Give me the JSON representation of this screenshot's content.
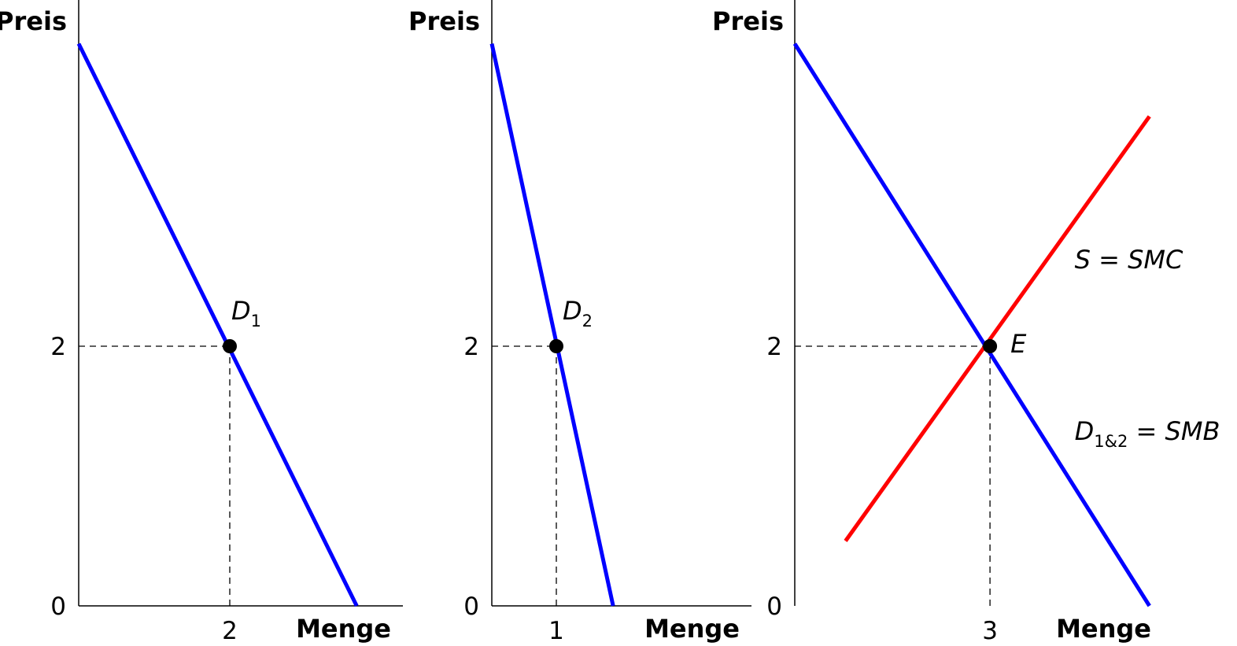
{
  "colors": {
    "demand": "#0000ff",
    "supply": "#ff0000",
    "axis": "#000000"
  },
  "chart_data": [
    {
      "type": "line",
      "ylabel": "Preis",
      "xlabel": "Menge",
      "xticks": [
        {
          "value": 2,
          "label": "2"
        }
      ],
      "yticks": [
        {
          "value": 0,
          "label": "0"
        },
        {
          "value": 2,
          "label": "2"
        }
      ],
      "xlim": [
        0,
        4.3
      ],
      "ylim": [
        0,
        4.4
      ],
      "series": [
        {
          "name": "D1",
          "color": "demand",
          "points": [
            [
              0,
              4.33
            ],
            [
              3.68,
              0
            ]
          ]
        }
      ],
      "points": [
        {
          "x": 2,
          "y": 2,
          "label": "D",
          "subscript": "1",
          "label_dx": 2,
          "label_dy": -34
        }
      ]
    },
    {
      "type": "line",
      "ylabel": "Preis",
      "xlabel": "Menge",
      "xticks": [
        {
          "value": 1,
          "label": "1"
        }
      ],
      "yticks": [
        {
          "value": 0,
          "label": "0"
        },
        {
          "value": 2,
          "label": "2"
        }
      ],
      "xlim": [
        0,
        4.05
      ],
      "ylim": [
        0,
        4.4
      ],
      "series": [
        {
          "name": "D2",
          "color": "demand",
          "points": [
            [
              0,
              4.33
            ],
            [
              1.88,
              0
            ]
          ]
        }
      ],
      "points": [
        {
          "x": 1,
          "y": 2,
          "label": "D",
          "subscript": "2",
          "label_dx": 8,
          "label_dy": -34
        }
      ]
    },
    {
      "type": "line",
      "ylabel": "Preis",
      "xlabel": "Menge",
      "xticks": [
        {
          "value": 3,
          "label": "3"
        }
      ],
      "yticks": [
        {
          "value": 0,
          "label": "0"
        },
        {
          "value": 2,
          "label": "2"
        }
      ],
      "xlim": [
        0,
        3.9
      ],
      "ylim": [
        0,
        4.4
      ],
      "series": [
        {
          "name": "D1&2 = SMB",
          "color": "demand",
          "points": [
            [
              0,
              4.33
            ],
            [
              5.45,
              0
            ]
          ]
        },
        {
          "name": "S = SMC",
          "color": "supply",
          "points": [
            [
              0.78,
              0.5
            ],
            [
              5.45,
              3.77
            ]
          ]
        }
      ],
      "points": [
        {
          "x": 3,
          "y": 2,
          "label": "E",
          "subscript": "",
          "label_dx": 26,
          "label_dy": 8
        }
      ],
      "curve_labels": [
        {
          "parts": [
            {
              "text": "S = SMC",
              "sub": false
            }
          ],
          "x": 4.3,
          "y": 2.6
        },
        {
          "parts": [
            {
              "text": "D",
              "sub": false
            },
            {
              "text": "1&2",
              "sub": true
            },
            {
              "text": " = SMB",
              "sub": false
            }
          ],
          "x": 4.3,
          "y": 1.28
        }
      ]
    }
  ]
}
